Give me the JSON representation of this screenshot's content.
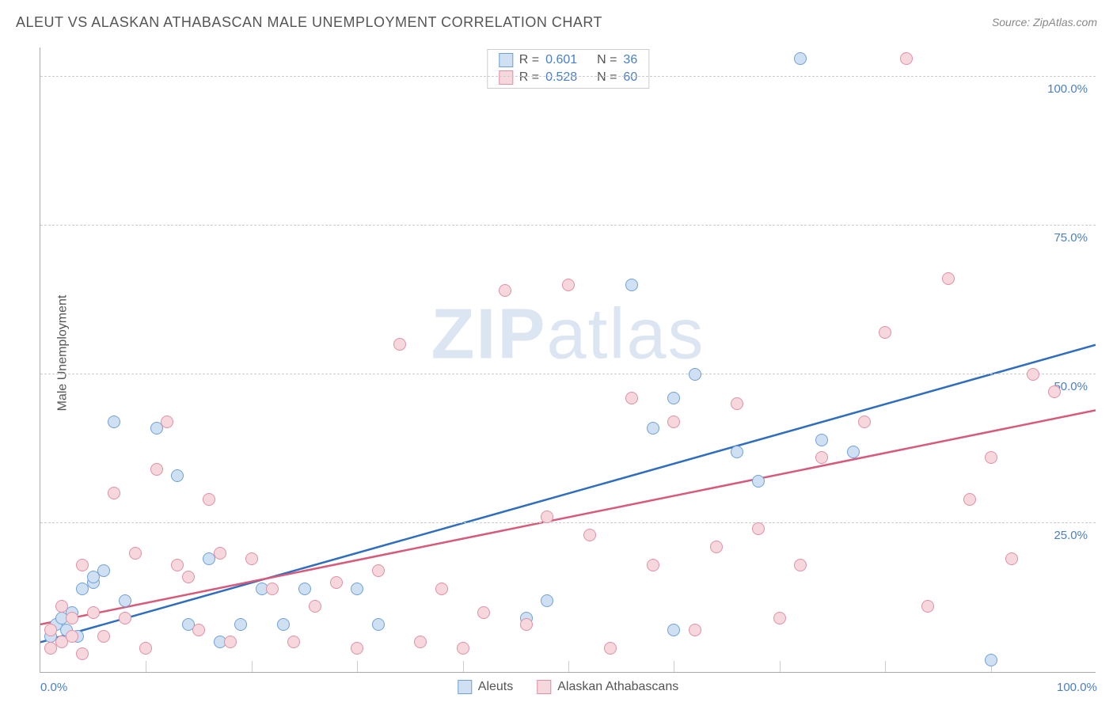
{
  "title": "ALEUT VS ALASKAN ATHABASCAN MALE UNEMPLOYMENT CORRELATION CHART",
  "source": "Source: ZipAtlas.com",
  "ylabel": "Male Unemployment",
  "watermark_bold": "ZIP",
  "watermark_light": "atlas",
  "chart": {
    "type": "scatter",
    "xlim": [
      0,
      100
    ],
    "ylim": [
      0,
      105
    ],
    "yticks": [
      {
        "v": 25,
        "label": "25.0%"
      },
      {
        "v": 50,
        "label": "50.0%"
      },
      {
        "v": 75,
        "label": "75.0%"
      },
      {
        "v": 100,
        "label": "100.0%"
      }
    ],
    "xticks": [
      {
        "v": 0,
        "label": "0.0%"
      },
      {
        "v": 100,
        "label": "100.0%"
      }
    ],
    "xminor": [
      10,
      20,
      30,
      40,
      50,
      60,
      70,
      80,
      90
    ],
    "background_color": "#ffffff",
    "grid_color": "#cccccc",
    "point_radius": 8,
    "series": [
      {
        "name": "Aleuts",
        "fill": "#cfe0f3",
        "stroke": "#6fa0d8",
        "r_label": "R =",
        "r_value": "0.601",
        "n_label": "N =",
        "n_value": "36",
        "trend": {
          "x1": 0,
          "y1": 5,
          "x2": 100,
          "y2": 55,
          "color": "#2e6dbf",
          "width": 2.5
        },
        "points": [
          [
            1,
            6
          ],
          [
            1.5,
            8
          ],
          [
            2,
            9
          ],
          [
            2.5,
            7
          ],
          [
            3,
            10
          ],
          [
            3.5,
            6
          ],
          [
            4,
            14
          ],
          [
            5,
            15
          ],
          [
            5,
            16
          ],
          [
            6,
            17
          ],
          [
            7,
            42
          ],
          [
            8,
            12
          ],
          [
            11,
            41
          ],
          [
            13,
            33
          ],
          [
            14,
            8
          ],
          [
            16,
            19
          ],
          [
            17,
            5
          ],
          [
            19,
            8
          ],
          [
            21,
            14
          ],
          [
            23,
            8
          ],
          [
            25,
            14
          ],
          [
            30,
            14
          ],
          [
            32,
            8
          ],
          [
            46,
            9
          ],
          [
            48,
            12
          ],
          [
            56,
            65
          ],
          [
            58,
            41
          ],
          [
            60,
            46
          ],
          [
            62,
            50
          ],
          [
            66,
            37
          ],
          [
            68,
            32
          ],
          [
            72,
            103
          ],
          [
            74,
            39
          ],
          [
            77,
            37
          ],
          [
            90,
            2
          ],
          [
            60,
            7
          ]
        ]
      },
      {
        "name": "Alaskan Athabascans",
        "fill": "#f6d7de",
        "stroke": "#e28fa4",
        "r_label": "R =",
        "r_value": "0.528",
        "n_label": "N =",
        "n_value": "60",
        "trend": {
          "x1": 0,
          "y1": 8,
          "x2": 100,
          "y2": 44,
          "color": "#d85a7a",
          "width": 2.5
        },
        "points": [
          [
            1,
            4
          ],
          [
            1,
            7
          ],
          [
            2,
            5
          ],
          [
            2,
            11
          ],
          [
            3,
            6
          ],
          [
            3,
            9
          ],
          [
            4,
            18
          ],
          [
            4,
            3
          ],
          [
            5,
            10
          ],
          [
            6,
            6
          ],
          [
            7,
            30
          ],
          [
            8,
            9
          ],
          [
            9,
            20
          ],
          [
            10,
            4
          ],
          [
            11,
            34
          ],
          [
            12,
            42
          ],
          [
            13,
            18
          ],
          [
            14,
            16
          ],
          [
            15,
            7
          ],
          [
            16,
            29
          ],
          [
            17,
            20
          ],
          [
            18,
            5
          ],
          [
            20,
            19
          ],
          [
            22,
            14
          ],
          [
            24,
            5
          ],
          [
            26,
            11
          ],
          [
            28,
            15
          ],
          [
            30,
            4
          ],
          [
            32,
            17
          ],
          [
            34,
            55
          ],
          [
            36,
            5
          ],
          [
            38,
            14
          ],
          [
            40,
            4
          ],
          [
            42,
            10
          ],
          [
            44,
            64
          ],
          [
            46,
            8
          ],
          [
            48,
            26
          ],
          [
            50,
            65
          ],
          [
            52,
            23
          ],
          [
            54,
            4
          ],
          [
            56,
            46
          ],
          [
            58,
            18
          ],
          [
            60,
            42
          ],
          [
            62,
            7
          ],
          [
            64,
            21
          ],
          [
            66,
            45
          ],
          [
            68,
            24
          ],
          [
            70,
            9
          ],
          [
            72,
            18
          ],
          [
            74,
            36
          ],
          [
            78,
            42
          ],
          [
            80,
            57
          ],
          [
            82,
            103
          ],
          [
            84,
            11
          ],
          [
            86,
            66
          ],
          [
            88,
            29
          ],
          [
            90,
            36
          ],
          [
            92,
            19
          ],
          [
            94,
            50
          ],
          [
            96,
            47
          ]
        ]
      }
    ],
    "legend_bottom": [
      {
        "label": "Aleuts",
        "fill": "#cfe0f3",
        "stroke": "#6fa0d8"
      },
      {
        "label": "Alaskan Athabascans",
        "fill": "#f6d7de",
        "stroke": "#e28fa4"
      }
    ]
  }
}
